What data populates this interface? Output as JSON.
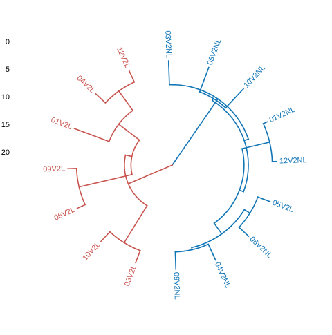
{
  "chart_data": {
    "type": "circular-dendrogram",
    "title": "",
    "xlabel": "",
    "ylabel": "",
    "radial_axis": {
      "ticks": [
        0,
        5,
        10,
        15,
        20
      ],
      "tick_labels": [
        "0",
        "5",
        "10",
        "15",
        "20"
      ],
      "range": [
        0,
        24
      ]
    },
    "clusters": [
      {
        "color": "#C8534E",
        "leaves": [
          "03V2L",
          "10V2L",
          "06V2L",
          "09V2L",
          "01V2L",
          "04V2L",
          "12V2L"
        ]
      },
      {
        "color": "#0F74B5",
        "leaves": [
          "03V2NL",
          "05V2NL",
          "10V2NL",
          "01V2NL",
          "12V2NL",
          "05V2L",
          "06V2NL",
          "04V2NL",
          "09V2NL"
        ]
      }
    ],
    "leaves": [
      {
        "label": "03V2NL",
        "cluster": 1
      },
      {
        "label": "05V2NL",
        "cluster": 1
      },
      {
        "label": "10V2NL",
        "cluster": 1
      },
      {
        "label": "01V2NL",
        "cluster": 1
      },
      {
        "label": "12V2NL",
        "cluster": 1
      },
      {
        "label": "05V2L",
        "cluster": 1
      },
      {
        "label": "06V2NL",
        "cluster": 1
      },
      {
        "label": "04V2NL",
        "cluster": 1
      },
      {
        "label": "09V2NL",
        "cluster": 1
      },
      {
        "label": "03V2L",
        "cluster": 0
      },
      {
        "label": "10V2L",
        "cluster": 0
      },
      {
        "label": "06V2L",
        "cluster": 0
      },
      {
        "label": "09V2L",
        "cluster": 0
      },
      {
        "label": "01V2L",
        "cluster": 0
      },
      {
        "label": "04V2L",
        "cluster": 0
      },
      {
        "label": "12V2L",
        "cluster": 0
      }
    ],
    "merge_heights": {
      "root": 24,
      "red_cluster": 13,
      "red_03_10": 3,
      "red_rest": 14.5,
      "red_06_09": 2,
      "red_01_04_12": 8.5,
      "red_04_12": 3,
      "blue_cluster": 5.5,
      "blue_03": 1,
      "blue_rest": 6.5,
      "blue_05_10": 6,
      "blue_01_12_05_06_04_09": 7.5,
      "blue_01_12": 1,
      "blue_05_06_04_09": 4.5,
      "blue_05_06": 3,
      "blue_04_09": 4
    }
  }
}
